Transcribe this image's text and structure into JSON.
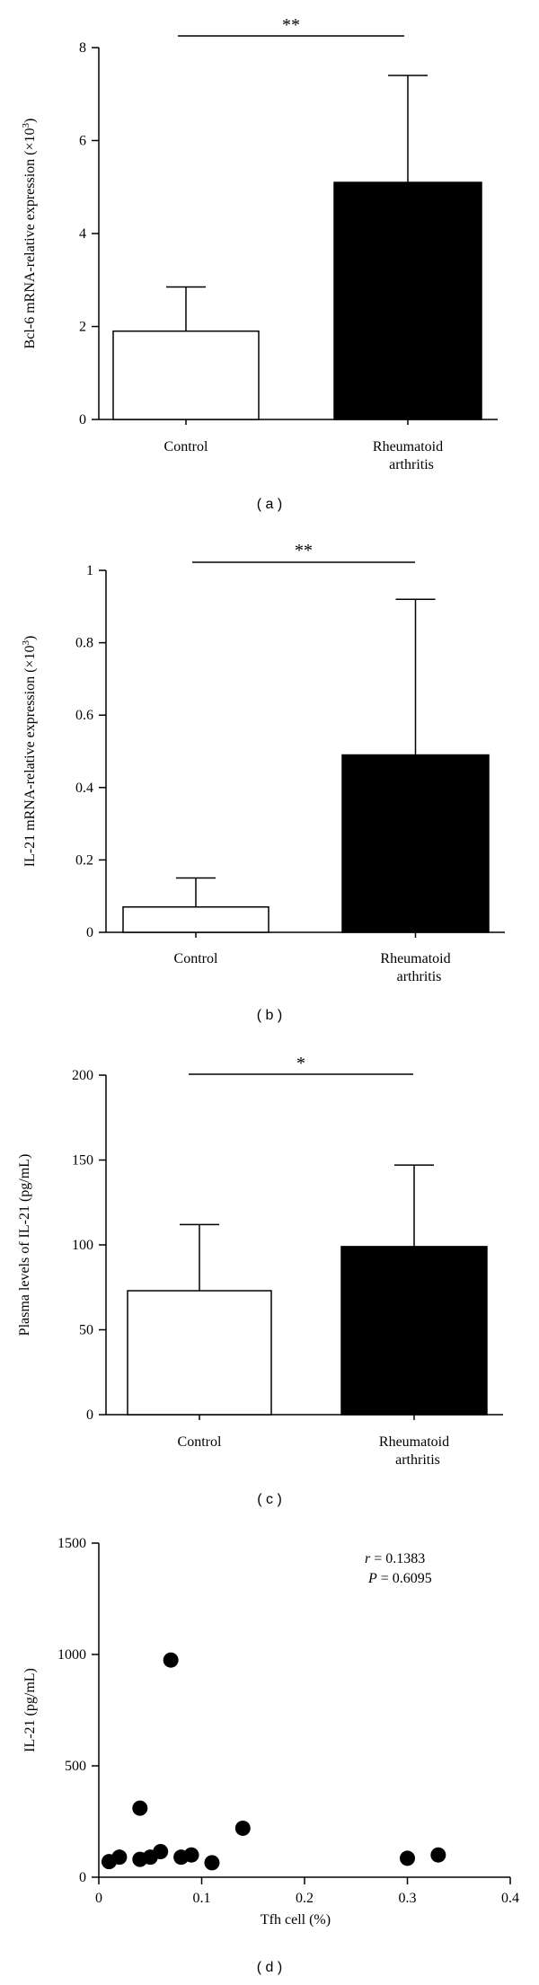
{
  "chart_data": [
    {
      "type": "bar",
      "panel_label": "( a )",
      "categories": [
        "Control",
        "Rheumatoid arthritis"
      ],
      "category_lines": [
        [
          "Control"
        ],
        [
          "Rheumatoid",
          "arthritis"
        ]
      ],
      "values": [
        1.9,
        5.1
      ],
      "errors": [
        0.95,
        2.3
      ],
      "bar_fills": [
        "#ffffff",
        "#000000"
      ],
      "ylabel_pre": "Bcl-6 mRNA-relative expression (×10",
      "ylabel_sup": "3",
      "ylabel_post": ")",
      "ylim": [
        0,
        8
      ],
      "yticks": [
        "0",
        "2",
        "4",
        "6",
        "8"
      ],
      "significance": "**"
    },
    {
      "type": "bar",
      "panel_label": "( b )",
      "categories": [
        "Control",
        "Rheumatoid arthritis"
      ],
      "category_lines": [
        [
          "Control"
        ],
        [
          "Rheumatoid",
          "arthritis"
        ]
      ],
      "values": [
        0.07,
        0.49
      ],
      "errors": [
        0.08,
        0.43
      ],
      "bar_fills": [
        "#ffffff",
        "#000000"
      ],
      "ylabel_pre": "IL-21 mRNA-relative expression (×10",
      "ylabel_sup": "3",
      "ylabel_post": ")",
      "ylim": [
        0,
        1
      ],
      "yticks": [
        "0",
        "0.2",
        "0.4",
        "0.6",
        "0.8",
        "1"
      ],
      "significance": "**"
    },
    {
      "type": "bar",
      "panel_label": "( c )",
      "categories": [
        "Control",
        "Rheumatoid arthritis"
      ],
      "category_lines": [
        [
          "Control"
        ],
        [
          "Rheumatoid",
          "arthritis"
        ]
      ],
      "values": [
        73,
        99
      ],
      "errors": [
        39,
        48
      ],
      "bar_fills": [
        "#ffffff",
        "#000000"
      ],
      "ylabel_pre": "Plasma levels of IL-21 (pg/mL)",
      "ylabel_sup": "",
      "ylabel_post": "",
      "ylim": [
        0,
        200
      ],
      "yticks": [
        "0",
        "50",
        "100",
        "150",
        "200"
      ],
      "significance": "*"
    },
    {
      "type": "scatter",
      "panel_label": "( d )",
      "xlabel": "Tfh cell (%)",
      "ylabel": "IL-21 (pg/mL)",
      "xlim": [
        0,
        0.4
      ],
      "ylim": [
        0,
        1500
      ],
      "xticks": [
        "0",
        "0.1",
        "0.2",
        "0.3",
        "0.4"
      ],
      "yticks": [
        "0",
        "500",
        "1000",
        "1500"
      ],
      "annotation_r_var": "r",
      "annotation_r_val": " = 0.1383",
      "annotation_p_var": "P",
      "annotation_p_val": " = 0.6095",
      "points": [
        {
          "x": 0.01,
          "y": 70
        },
        {
          "x": 0.02,
          "y": 90
        },
        {
          "x": 0.04,
          "y": 80
        },
        {
          "x": 0.05,
          "y": 90
        },
        {
          "x": 0.06,
          "y": 115
        },
        {
          "x": 0.04,
          "y": 310
        },
        {
          "x": 0.07,
          "y": 975
        },
        {
          "x": 0.08,
          "y": 90
        },
        {
          "x": 0.09,
          "y": 100
        },
        {
          "x": 0.11,
          "y": 65
        },
        {
          "x": 0.14,
          "y": 220
        },
        {
          "x": 0.3,
          "y": 85
        },
        {
          "x": 0.33,
          "y": 100
        }
      ]
    }
  ]
}
